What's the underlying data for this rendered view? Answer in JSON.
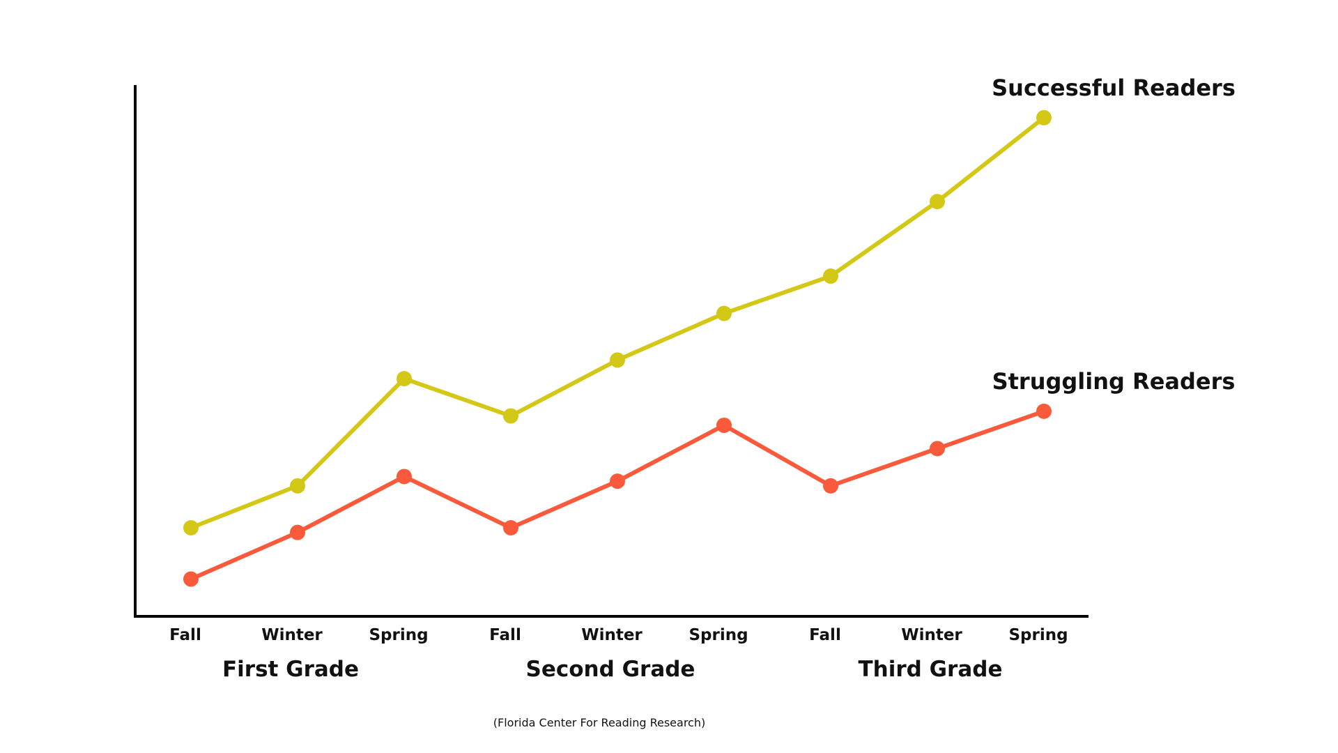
{
  "chart_data": {
    "type": "line",
    "categories": [
      "Fall",
      "Winter",
      "Spring",
      "Fall",
      "Winter",
      "Spring",
      "Fall",
      "Winter",
      "Spring"
    ],
    "groups": [
      {
        "label": "First Grade",
        "span": [
          0,
          2
        ]
      },
      {
        "label": "Second Grade",
        "span": [
          3,
          5
        ]
      },
      {
        "label": "Third Grade",
        "span": [
          6,
          8
        ]
      }
    ],
    "series": [
      {
        "name": "Successful Readers",
        "color": "#d4c816",
        "values": [
          1.7,
          2.6,
          4.9,
          4.1,
          5.3,
          6.3,
          7.1,
          8.7,
          10.5
        ]
      },
      {
        "name": "Struggling Readers",
        "color": "#fa5a3c",
        "values": [
          0.6,
          1.6,
          2.8,
          1.7,
          2.7,
          3.9,
          2.6,
          3.4,
          4.2
        ]
      }
    ],
    "ylim": [
      -0.2,
      11.2
    ],
    "grid": false,
    "show_y_ticks": false,
    "source": "(Florida Center For Reading Research)"
  }
}
